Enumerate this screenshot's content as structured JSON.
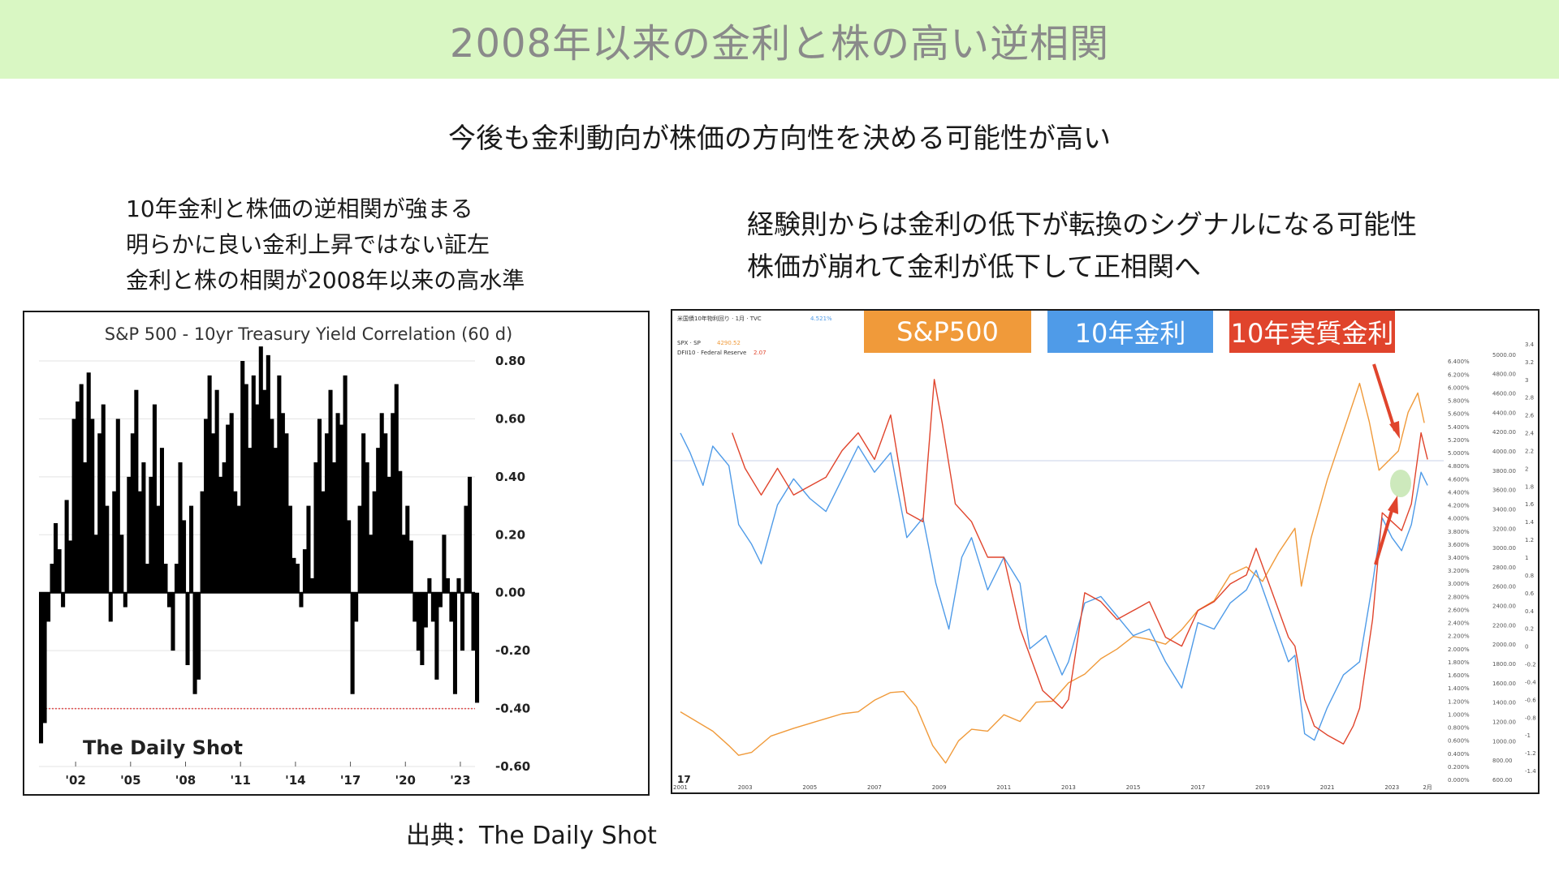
{
  "header": {
    "title": "2008年以来の金利と株の高い逆相関"
  },
  "subtitle": "今後も金利動向が株価の方向性を決める可能性が高い",
  "left_notes": [
    "10年金利と株価の逆相関が強まる",
    "明らかに良い金利上昇ではない証左",
    "金利と株の相関が2008年以来の高水準"
  ],
  "right_notes": [
    "経験則からは金利の低下が転換のシグナルになる可能性",
    "株価が崩れて金利が低下して正相関へ"
  ],
  "legend": {
    "spx": "S&P500",
    "ten_year": "10年金利",
    "real": "10年実質金利"
  },
  "source": "出典：The Daily Shot",
  "colors": {
    "header_bg": "#d9f7c3",
    "spx": "#f09a3a",
    "ten_year": "#4f9be8",
    "real": "#e0442c"
  },
  "chart_data": [
    {
      "type": "bar",
      "title": "S&P 500 - 10yr Treasury Yield Correlation (60 d)",
      "watermark": "The Daily Shot",
      "x_tick_labels": [
        "'02",
        "'05",
        "'08",
        "'11",
        "'14",
        "'17",
        "'20",
        "'23"
      ],
      "x_tick_years": [
        2002,
        2005,
        2008,
        2011,
        2014,
        2017,
        2020,
        2023
      ],
      "y_tick_labels": [
        "0.80",
        "0.60",
        "0.40",
        "0.20",
        "0.00",
        "-0.20",
        "-0.40",
        "-0.60"
      ],
      "ylim": [
        -0.6,
        0.8
      ],
      "xlim": [
        2000.0,
        2023.8
      ],
      "reference_line": -0.4,
      "x": [
        2000.0,
        2000.2,
        2000.4,
        2000.6,
        2000.8,
        2001.0,
        2001.2,
        2001.4,
        2001.6,
        2001.8,
        2002.0,
        2002.2,
        2002.4,
        2002.6,
        2002.8,
        2003.0,
        2003.2,
        2003.4,
        2003.6,
        2003.8,
        2004.0,
        2004.2,
        2004.4,
        2004.6,
        2004.8,
        2005.0,
        2005.2,
        2005.4,
        2005.6,
        2005.8,
        2006.0,
        2006.2,
        2006.4,
        2006.6,
        2006.8,
        2007.0,
        2007.2,
        2007.4,
        2007.6,
        2007.8,
        2008.0,
        2008.2,
        2008.4,
        2008.6,
        2008.8,
        2009.0,
        2009.2,
        2009.4,
        2009.6,
        2009.8,
        2010.0,
        2010.2,
        2010.4,
        2010.6,
        2010.8,
        2011.0,
        2011.2,
        2011.4,
        2011.6,
        2011.8,
        2012.0,
        2012.2,
        2012.4,
        2012.6,
        2012.8,
        2013.0,
        2013.2,
        2013.4,
        2013.6,
        2013.8,
        2014.0,
        2014.2,
        2014.4,
        2014.6,
        2014.8,
        2015.0,
        2015.2,
        2015.4,
        2015.6,
        2015.8,
        2016.0,
        2016.2,
        2016.4,
        2016.6,
        2016.8,
        2017.0,
        2017.2,
        2017.4,
        2017.6,
        2017.8,
        2018.0,
        2018.2,
        2018.4,
        2018.6,
        2018.8,
        2019.0,
        2019.2,
        2019.4,
        2019.6,
        2019.8,
        2020.0,
        2020.2,
        2020.4,
        2020.6,
        2020.8,
        2021.0,
        2021.2,
        2021.4,
        2021.6,
        2021.8,
        2022.0,
        2022.2,
        2022.4,
        2022.6,
        2022.8,
        2023.0,
        2023.2,
        2023.4,
        2023.6,
        2023.8
      ],
      "values": [
        -0.52,
        -0.45,
        -0.1,
        0.1,
        0.24,
        0.15,
        -0.05,
        0.32,
        0.18,
        0.6,
        0.66,
        0.72,
        0.45,
        0.76,
        0.6,
        0.2,
        0.55,
        0.65,
        0.3,
        -0.1,
        0.35,
        0.6,
        0.2,
        -0.05,
        0.4,
        0.55,
        0.7,
        0.35,
        0.45,
        0.1,
        0.4,
        0.65,
        0.3,
        0.5,
        0.1,
        -0.05,
        -0.2,
        0.1,
        0.45,
        0.25,
        -0.25,
        0.3,
        -0.35,
        -0.3,
        0.35,
        0.6,
        0.75,
        0.55,
        0.7,
        0.4,
        0.45,
        0.58,
        0.62,
        0.35,
        0.3,
        0.8,
        0.72,
        0.5,
        0.75,
        0.65,
        0.85,
        0.7,
        0.82,
        0.6,
        0.5,
        0.75,
        0.62,
        0.55,
        0.3,
        0.12,
        0.1,
        -0.05,
        0.15,
        0.3,
        0.05,
        0.45,
        0.6,
        0.35,
        0.55,
        0.7,
        0.45,
        0.62,
        0.58,
        0.75,
        0.25,
        -0.35,
        -0.1,
        0.3,
        0.55,
        0.45,
        0.2,
        0.35,
        0.5,
        0.62,
        0.55,
        0.4,
        0.62,
        0.72,
        0.42,
        0.2,
        0.3,
        0.18,
        -0.1,
        -0.2,
        -0.25,
        -0.12,
        0.05,
        -0.1,
        -0.3,
        -0.05,
        0.2,
        0.05,
        -0.1,
        -0.35,
        0.05,
        -0.2,
        0.3,
        0.4,
        -0.2,
        -0.38
      ]
    },
    {
      "type": "line",
      "x_tick_labels": [
        "2001",
        "2003",
        "2005",
        "2007",
        "2009",
        "2011",
        "2013",
        "2015",
        "2017",
        "2019",
        "2021",
        "2023",
        "2月"
      ],
      "x_tick_years": [
        2001,
        2003,
        2005,
        2007,
        2009,
        2011,
        2013,
        2015,
        2017,
        2019,
        2021,
        2023,
        2024.1
      ],
      "xlim": [
        2000.8,
        2024.6
      ],
      "header_items": [
        {
          "text": "米国債10年物利回り · 1月 · TVC",
          "value": "4.521%"
        },
        {
          "text": "SPX · SP",
          "value": "4290.52"
        },
        {
          "text": "DFII10 · Federal Reserve",
          "value": "2.07"
        }
      ],
      "series": [
        {
          "name": "S&P500",
          "ylim": [
            600,
            5200
          ],
          "axis_ticks": [
            "5000.00",
            "4800.00",
            "4600.00",
            "4400.00",
            "4200.00",
            "4000.00",
            "3800.00",
            "3600.00",
            "3400.00",
            "3200.00",
            "3000.00",
            "2800.00",
            "2600.00",
            "2400.00",
            "2200.00",
            "2000.00",
            "1800.00",
            "1600.00",
            "1400.00",
            "1200.00",
            "1000.00",
            "800.00",
            "600.00"
          ],
          "x": [
            2001,
            2001.5,
            2002,
            2002.5,
            2002.8,
            2003.2,
            2003.8,
            2004.5,
            2005,
            2005.5,
            2006,
            2006.5,
            2007,
            2007.5,
            2007.9,
            2008.3,
            2008.8,
            2009.2,
            2009.6,
            2010,
            2010.5,
            2011,
            2011.5,
            2012,
            2012.5,
            2013,
            2013.5,
            2014,
            2014.5,
            2015,
            2015.5,
            2016,
            2016.5,
            2017,
            2017.5,
            2018,
            2018.5,
            2019,
            2019.5,
            2020,
            2020.2,
            2020.5,
            2021,
            2021.5,
            2022,
            2022.3,
            2022.6,
            2022.9,
            2023.2,
            2023.5,
            2023.8,
            2024
          ],
          "values": [
            1300,
            1200,
            1100,
            950,
            850,
            880,
            1050,
            1130,
            1180,
            1230,
            1280,
            1300,
            1420,
            1500,
            1510,
            1350,
            950,
            770,
            1000,
            1120,
            1100,
            1270,
            1200,
            1400,
            1410,
            1600,
            1690,
            1850,
            1950,
            2080,
            2050,
            2000,
            2150,
            2350,
            2450,
            2720,
            2800,
            2650,
            2950,
            3200,
            2600,
            3100,
            3700,
            4200,
            4700,
            4300,
            3800,
            3900,
            4000,
            4400,
            4600,
            4290
          ]
        },
        {
          "name": "10年金利",
          "ylim": [
            0,
            6.8
          ],
          "axis_ticks": [
            "6.400%",
            "6.200%",
            "6.000%",
            "5.800%",
            "5.600%",
            "5.400%",
            "5.200%",
            "5.000%",
            "4.800%",
            "4.600%",
            "4.400%",
            "4.200%",
            "4.000%",
            "3.800%",
            "3.600%",
            "3.400%",
            "3.200%",
            "3.000%",
            "2.800%",
            "2.600%",
            "2.400%",
            "2.200%",
            "2.000%",
            "1.800%",
            "1.600%",
            "1.400%",
            "1.200%",
            "1.000%",
            "0.800%",
            "0.600%",
            "0.400%",
            "0.200%",
            "0.000%"
          ],
          "x": [
            2001,
            2001.3,
            2001.7,
            2002,
            2002.5,
            2002.8,
            2003.2,
            2003.5,
            2004,
            2004.5,
            2005,
            2005.5,
            2006,
            2006.5,
            2007,
            2007.5,
            2008,
            2008.5,
            2008.9,
            2009.3,
            2009.7,
            2010,
            2010.5,
            2011,
            2011.5,
            2011.8,
            2012.3,
            2012.8,
            2013,
            2013.5,
            2014,
            2014.5,
            2015,
            2015.5,
            2016,
            2016.5,
            2017,
            2017.5,
            2018,
            2018.5,
            2018.8,
            2019.3,
            2019.8,
            2020,
            2020.3,
            2020.6,
            2021,
            2021.5,
            2022,
            2022.4,
            2022.7,
            2023,
            2023.3,
            2023.6,
            2023.9,
            2024.1
          ],
          "values": [
            5.3,
            5.0,
            4.5,
            5.1,
            4.8,
            3.9,
            3.6,
            3.3,
            4.2,
            4.6,
            4.3,
            4.1,
            4.6,
            5.1,
            4.7,
            5.0,
            3.7,
            4.0,
            3.0,
            2.3,
            3.4,
            3.7,
            2.9,
            3.4,
            3.0,
            2.0,
            2.2,
            1.6,
            1.8,
            2.7,
            2.8,
            2.5,
            2.2,
            2.3,
            1.8,
            1.4,
            2.4,
            2.3,
            2.7,
            2.9,
            3.2,
            2.5,
            1.8,
            1.9,
            0.7,
            0.6,
            1.1,
            1.6,
            1.8,
            3.0,
            4.0,
            3.7,
            3.5,
            3.9,
            4.7,
            4.5
          ]
        },
        {
          "name": "10年実質金利",
          "ylim": [
            -1.5,
            3.5
          ],
          "axis_ticks": [
            "3.4",
            "3.2",
            "3",
            "2.8",
            "2.6",
            "2.4",
            "2.2",
            "2",
            "1.8",
            "1.6",
            "1.4",
            "1.2",
            "1",
            "0.8",
            "0.6",
            "0.4",
            "0.2",
            "0",
            "-0.2",
            "-0.4",
            "-0.6",
            "-0.8",
            "-1",
            "-1.2",
            "-1.4"
          ],
          "x": [
            2002.6,
            2003,
            2003.5,
            2004,
            2004.5,
            2005,
            2005.5,
            2006,
            2006.5,
            2007,
            2007.5,
            2008,
            2008.5,
            2008.85,
            2009.1,
            2009.5,
            2010,
            2010.5,
            2011,
            2011.5,
            2011.8,
            2012.2,
            2012.8,
            2013,
            2013.5,
            2014,
            2014.5,
            2015,
            2015.5,
            2016,
            2016.5,
            2017,
            2017.5,
            2018,
            2018.5,
            2018.8,
            2019.3,
            2019.8,
            2020,
            2020.3,
            2020.6,
            2021,
            2021.5,
            2021.8,
            2022,
            2022.4,
            2022.7,
            2023,
            2023.3,
            2023.6,
            2023.9,
            2024.1
          ],
          "values": [
            2.4,
            2.0,
            1.7,
            2.0,
            1.7,
            1.8,
            1.9,
            2.2,
            2.4,
            2.1,
            2.6,
            1.5,
            1.4,
            3.0,
            2.5,
            1.6,
            1.4,
            1.0,
            1.0,
            0.2,
            -0.1,
            -0.5,
            -0.7,
            -0.6,
            0.6,
            0.5,
            0.3,
            0.4,
            0.5,
            0.1,
            0.0,
            0.4,
            0.5,
            0.7,
            0.8,
            1.1,
            0.6,
            0.1,
            0.0,
            -0.6,
            -0.9,
            -1.0,
            -1.1,
            -0.9,
            -0.7,
            0.3,
            1.5,
            1.4,
            1.3,
            1.6,
            2.4,
            2.1
          ]
        }
      ]
    }
  ]
}
